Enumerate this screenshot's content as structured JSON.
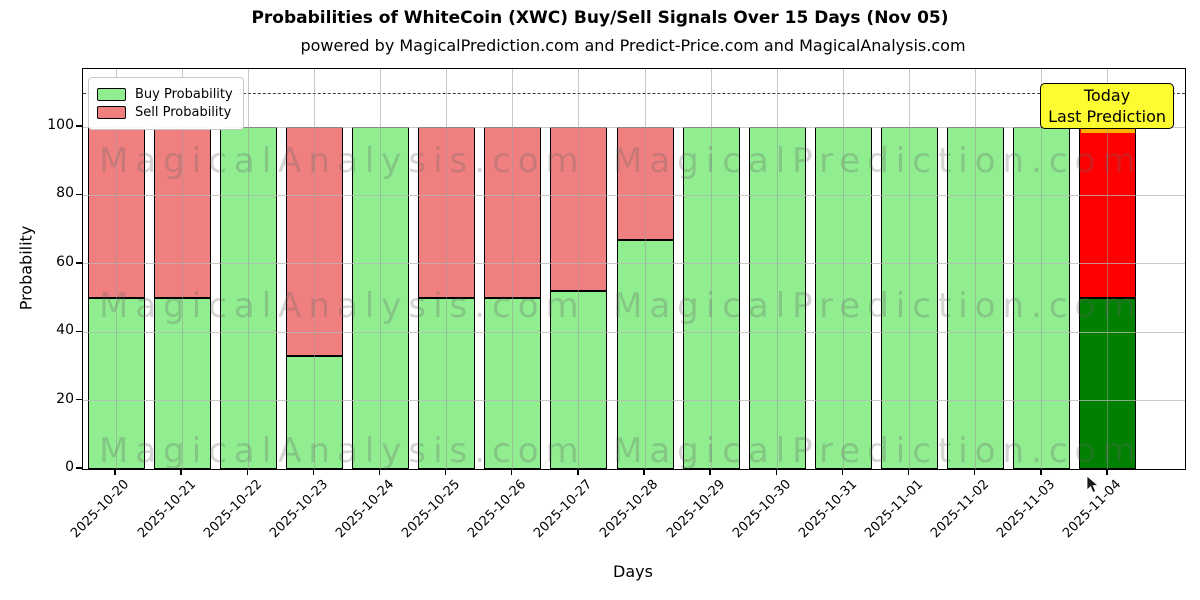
{
  "title": "Probabilities of WhiteCoin (XWC) Buy/Sell Signals Over 15 Days (Nov 05)",
  "subtitle": "powered by MagicalPrediction.com and Predict-Price.com and MagicalAnalysis.com",
  "chart_data": {
    "type": "bar",
    "stacked": true,
    "xlabel": "Days",
    "ylabel": "Probability",
    "categories": [
      "2025-10-20",
      "2025-10-21",
      "2025-10-22",
      "2025-10-23",
      "2025-10-24",
      "2025-10-25",
      "2025-10-26",
      "2025-10-27",
      "2025-10-28",
      "2025-10-29",
      "2025-10-30",
      "2025-10-31",
      "2025-11-01",
      "2025-11-02",
      "2025-11-03",
      "2025-11-04"
    ],
    "series": [
      {
        "name": "Buy Probability",
        "color": "#90ee90",
        "values": [
          50,
          50,
          100,
          33,
          100,
          50,
          50,
          52,
          67,
          100,
          100,
          100,
          100,
          100,
          100,
          50
        ]
      },
      {
        "name": "Sell Probability",
        "color": "#f08080",
        "values": [
          50,
          50,
          0,
          67,
          0,
          50,
          50,
          48,
          33,
          0,
          0,
          0,
          0,
          0,
          0,
          50
        ]
      }
    ],
    "today_bar": {
      "category": "2025-11-04",
      "index": 15,
      "buy_color": "#008000",
      "sell_color": "#ff0000",
      "top_cap_color": "#ffb400"
    },
    "yticks": [
      0,
      20,
      40,
      60,
      80,
      100
    ],
    "ylim": [
      0,
      117
    ],
    "dashed_line_y": 110,
    "grid": true,
    "legend_position": "upper left",
    "bar_edge_color": "#000000"
  },
  "legend": {
    "items": [
      {
        "label": "Buy Probability",
        "color": "#90ee90"
      },
      {
        "label": "Sell Probability",
        "color": "#f08080"
      }
    ]
  },
  "annotation_box": {
    "line1": "Today",
    "line2": "Last Prediction",
    "bg_color": "#fcfc30",
    "border_color": "#000000"
  },
  "watermarks": {
    "left_text": "MagicalAnalysis.com",
    "right_text": "MagicalPrediction.com"
  },
  "icons": {
    "cursor": "mouse-pointer-icon"
  }
}
